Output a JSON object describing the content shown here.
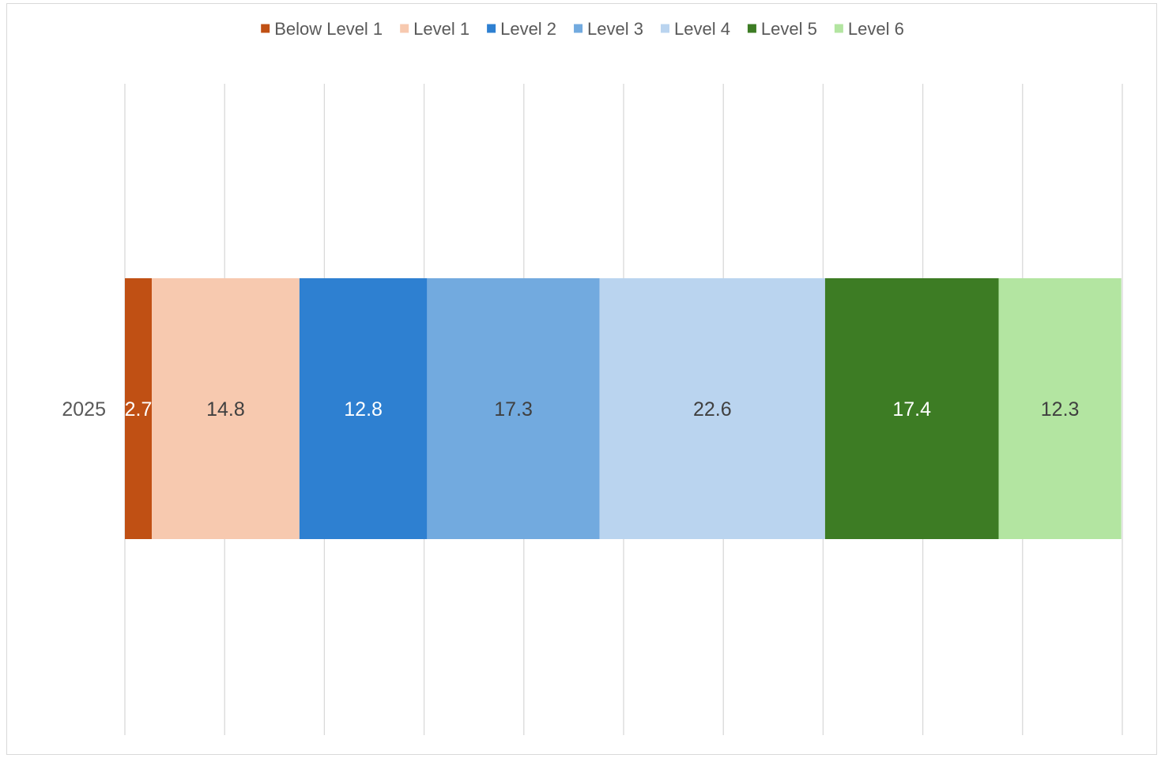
{
  "chart_data": {
    "type": "bar",
    "orientation": "horizontal",
    "stacked": true,
    "categories": [
      "2025"
    ],
    "series": [
      {
        "name": "Below Level 1",
        "values": [
          2.7
        ],
        "color": "#C05014",
        "label_color": "#ffffff"
      },
      {
        "name": "Level 1",
        "values": [
          14.8
        ],
        "color": "#F7C9AF",
        "label_color": "#404040"
      },
      {
        "name": "Level 2",
        "values": [
          12.8
        ],
        "color": "#2E80D1",
        "label_color": "#ffffff"
      },
      {
        "name": "Level 3",
        "values": [
          17.3
        ],
        "color": "#72AADF",
        "label_color": "#404040"
      },
      {
        "name": "Level 4",
        "values": [
          22.6
        ],
        "color": "#BAD4EF",
        "label_color": "#404040"
      },
      {
        "name": "Level 5",
        "values": [
          17.4
        ],
        "color": "#3D7C24",
        "label_color": "#ffffff"
      },
      {
        "name": "Level 6",
        "values": [
          12.3
        ],
        "color": "#B3E5A1",
        "label_color": "#404040"
      }
    ],
    "xlim": [
      0,
      100
    ],
    "x_gridline_count": 10,
    "legend_position": "top",
    "grid": true,
    "title": "",
    "xlabel": "",
    "ylabel": ""
  }
}
